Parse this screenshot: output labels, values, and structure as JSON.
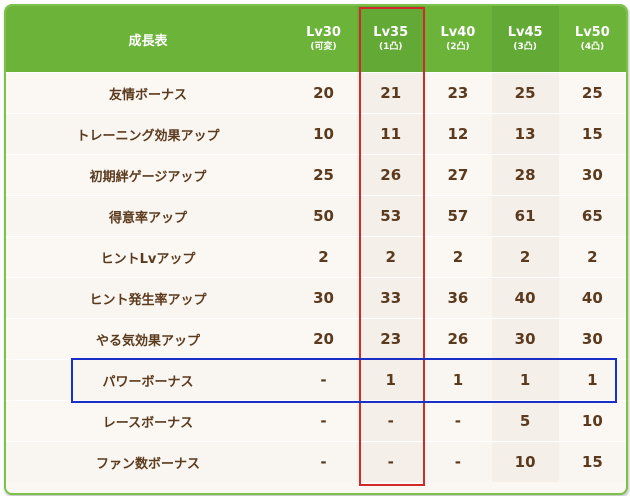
{
  "table": {
    "header_label": "成長表",
    "levels": [
      {
        "lv": "Lv30",
        "sub": "(可変)"
      },
      {
        "lv": "Lv35",
        "sub": "(1凸)"
      },
      {
        "lv": "Lv40",
        "sub": "(2凸)"
      },
      {
        "lv": "Lv45",
        "sub": "(3凸)"
      },
      {
        "lv": "Lv50",
        "sub": "(4凸)"
      }
    ],
    "rows": [
      {
        "label": "友情ボーナス",
        "values": [
          "20",
          "21",
          "23",
          "25",
          "25"
        ]
      },
      {
        "label": "トレーニング効果アップ",
        "values": [
          "10",
          "11",
          "12",
          "13",
          "15"
        ]
      },
      {
        "label": "初期絆ゲージアップ",
        "values": [
          "25",
          "26",
          "27",
          "28",
          "30"
        ]
      },
      {
        "label": "得意率アップ",
        "values": [
          "50",
          "53",
          "57",
          "61",
          "65"
        ]
      },
      {
        "label": "ヒントLvアップ",
        "values": [
          "2",
          "2",
          "2",
          "2",
          "2"
        ]
      },
      {
        "label": "ヒント発生率アップ",
        "values": [
          "30",
          "33",
          "36",
          "40",
          "40"
        ]
      },
      {
        "label": "やる気効果アップ",
        "values": [
          "20",
          "23",
          "26",
          "30",
          "30"
        ]
      },
      {
        "label": "パワーボーナス",
        "values": [
          "-",
          "1",
          "1",
          "1",
          "1"
        ]
      },
      {
        "label": "レースボーナス",
        "values": [
          "-",
          "-",
          "-",
          "5",
          "10"
        ]
      },
      {
        "label": "ファン数ボーナス",
        "values": [
          "-",
          "-",
          "-",
          "10",
          "15"
        ]
      }
    ]
  },
  "highlights": {
    "column_box_color": "#d12a2a",
    "row_box_color": "#1a2ec8"
  }
}
